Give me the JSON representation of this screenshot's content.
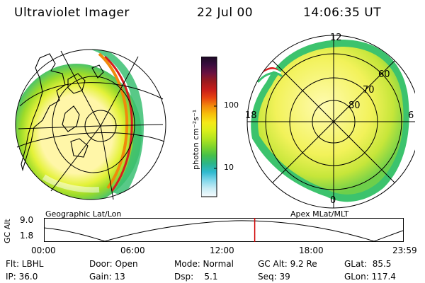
{
  "header": {
    "instrument": "Ultraviolet Imager",
    "date": "22 Jul 00",
    "time": "14:06:35 UT"
  },
  "left_panel": {
    "label": "Geographic Lat/Lon"
  },
  "right_panel": {
    "label": "Apex MLat/MLT",
    "mlt_labels": [
      "12",
      "18",
      "6",
      "0"
    ],
    "mlat_labels": [
      "60",
      "70",
      "80"
    ]
  },
  "colorbar": {
    "unit_label": "photon cm⁻²s⁻¹",
    "ticks": [
      "100",
      "10"
    ],
    "scale": "log",
    "colors": [
      "#1b0a24",
      "#3a0d3e",
      "#6a1140",
      "#9a1a1e",
      "#c71d1a",
      "#e74310",
      "#f28a0c",
      "#f7c10a",
      "#f5e918",
      "#d9ef1a",
      "#b1e41f",
      "#7cd32c",
      "#45c04a",
      "#2bb58a",
      "#2fb9cf",
      "#7fd6ea",
      "#c8ecf5",
      "#f6fbfd"
    ]
  },
  "timeline": {
    "axis_label": "GC Alt",
    "y_ticks": [
      "9.0",
      "1.8"
    ],
    "x_ticks": [
      "00:00",
      "06:00",
      "12:00",
      "18:00",
      "23:59"
    ],
    "current_time_fraction": 0.587,
    "marker_color": "#d00000"
  },
  "footer": {
    "flt": "Flt: LBHL",
    "ip": "IP: 36.0",
    "door": "Door: Open",
    "gain": "Gain: 13",
    "mode": "Mode: Normal",
    "dsp": "Dsp:    5.1",
    "gcalt": "GC Alt: 9.2 Re",
    "seq": "Seq: 39",
    "glat": "GLat:  85.5",
    "glon": "GLon: 117.4"
  }
}
